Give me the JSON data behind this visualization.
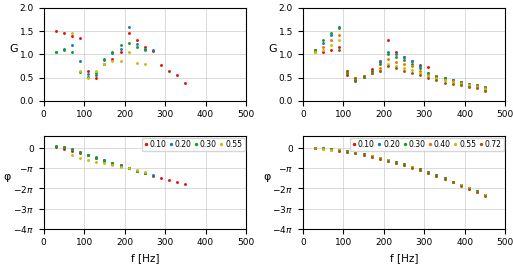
{
  "left_gain": {
    "red": {
      "freq": [
        30,
        50,
        70,
        90,
        110,
        130,
        150,
        170,
        190,
        210,
        230,
        250,
        270,
        290,
        310,
        330,
        350
      ],
      "gain": [
        1.5,
        1.45,
        1.4,
        1.35,
        0.65,
        0.48,
        0.8,
        0.9,
        1.05,
        1.45,
        1.32,
        1.15,
        1.08,
        0.78,
        0.65,
        0.55,
        0.38
      ]
    },
    "blue": {
      "freq": [
        30,
        50,
        70,
        90,
        110,
        130,
        150,
        170,
        190,
        210,
        230,
        250,
        270
      ],
      "gain": [
        1.05,
        1.12,
        1.2,
        0.85,
        0.58,
        0.55,
        0.88,
        1.02,
        1.12,
        1.6,
        1.22,
        1.12,
        1.1
      ]
    },
    "green": {
      "freq": [
        30,
        50,
        70,
        90,
        110,
        130,
        150,
        170,
        190,
        210,
        230,
        250
      ],
      "gain": [
        1.05,
        1.1,
        1.05,
        0.62,
        0.52,
        0.6,
        0.9,
        1.05,
        1.2,
        1.25,
        1.15,
        1.1
      ]
    },
    "olive": {
      "freq": [
        70,
        90,
        110,
        130,
        150,
        170,
        190,
        210,
        230,
        250
      ],
      "gain": [
        1.45,
        0.65,
        0.5,
        0.65,
        0.8,
        0.85,
        0.85,
        1.05,
        0.82,
        0.8
      ]
    }
  },
  "left_phase": {
    "red": {
      "freq": [
        30,
        50,
        70,
        90,
        110,
        130,
        150,
        170,
        190,
        210,
        230,
        250,
        270,
        290,
        310,
        330,
        350
      ],
      "phase_pi": [
        0.04,
        -0.04,
        -0.13,
        -0.22,
        -0.35,
        -0.48,
        -0.6,
        -0.73,
        -0.86,
        -0.99,
        -1.12,
        -1.25,
        -1.38,
        -1.5,
        -1.6,
        -1.7,
        -1.8
      ]
    },
    "blue": {
      "freq": [
        30,
        50,
        70,
        90,
        110,
        130,
        150,
        170,
        190,
        210,
        230,
        250,
        270
      ],
      "phase_pi": [
        0.08,
        0.03,
        -0.06,
        -0.18,
        -0.32,
        -0.46,
        -0.6,
        -0.73,
        -0.86,
        -0.99,
        -1.12,
        -1.25,
        -1.35
      ]
    },
    "green": {
      "freq": [
        30,
        50,
        70,
        90,
        110,
        130,
        150,
        170,
        190,
        210,
        230,
        250
      ],
      "phase_pi": [
        0.08,
        0.03,
        -0.06,
        -0.18,
        -0.35,
        -0.5,
        -0.63,
        -0.76,
        -0.89,
        -1.0,
        -1.12,
        -1.22
      ]
    },
    "olive": {
      "freq": [
        70,
        90,
        110,
        130,
        150,
        170,
        190,
        210,
        230,
        250
      ],
      "phase_pi": [
        -0.35,
        -0.48,
        -0.58,
        -0.68,
        -0.76,
        -0.85,
        -0.92,
        -1.0,
        -1.1,
        -1.18
      ]
    }
  },
  "right_gain": {
    "red": {
      "freq": [
        30,
        50,
        70,
        90,
        110,
        130,
        150,
        170,
        190,
        210,
        230,
        250,
        270,
        290,
        310,
        330,
        350,
        370,
        390,
        410,
        430,
        450
      ],
      "gain": [
        1.1,
        1.05,
        1.1,
        1.15,
        0.55,
        0.42,
        0.52,
        0.68,
        0.85,
        1.3,
        1.05,
        0.95,
        0.85,
        0.78,
        0.72,
        0.52,
        0.48,
        0.44,
        0.4,
        0.35,
        0.3,
        0.24
      ]
    },
    "blue": {
      "freq": [
        30,
        50,
        70,
        90,
        110,
        130,
        150,
        170,
        190,
        210,
        230,
        250,
        270,
        290,
        310,
        330,
        350,
        370,
        390,
        410,
        430,
        450
      ],
      "gain": [
        1.1,
        1.25,
        1.42,
        1.6,
        0.65,
        0.44,
        0.52,
        0.64,
        0.84,
        1.06,
        1.0,
        0.95,
        0.85,
        0.75,
        0.6,
        0.54,
        0.48,
        0.44,
        0.4,
        0.37,
        0.34,
        0.3
      ]
    },
    "green": {
      "freq": [
        30,
        50,
        70,
        90,
        110,
        130,
        150,
        170,
        190,
        210,
        230,
        250,
        270,
        290,
        310,
        330,
        350,
        370,
        390,
        410,
        430,
        450
      ],
      "gain": [
        1.1,
        1.3,
        1.46,
        1.56,
        0.6,
        0.44,
        0.52,
        0.64,
        0.8,
        1.0,
        0.95,
        0.88,
        0.8,
        0.7,
        0.6,
        0.54,
        0.48,
        0.44,
        0.4,
        0.37,
        0.34,
        0.3
      ]
    },
    "orange": {
      "freq": [
        30,
        50,
        70,
        90,
        110,
        130,
        150,
        170,
        190,
        210,
        230,
        250,
        270,
        290,
        310,
        330,
        350,
        370,
        390,
        410,
        430,
        450
      ],
      "gain": [
        1.05,
        1.15,
        1.3,
        1.42,
        0.65,
        0.5,
        0.54,
        0.6,
        0.7,
        0.9,
        0.84,
        0.8,
        0.74,
        0.65,
        0.56,
        0.5,
        0.45,
        0.42,
        0.38,
        0.35,
        0.31,
        0.27
      ]
    },
    "olive": {
      "freq": [
        30,
        50,
        70,
        90,
        110,
        130,
        150,
        170,
        190,
        210,
        230,
        250,
        270,
        290,
        310,
        330,
        350,
        370,
        390,
        410,
        430,
        450
      ],
      "gain": [
        1.05,
        1.1,
        1.2,
        1.3,
        0.65,
        0.5,
        0.54,
        0.6,
        0.65,
        0.8,
        0.74,
        0.7,
        0.66,
        0.6,
        0.54,
        0.48,
        0.44,
        0.41,
        0.37,
        0.34,
        0.3,
        0.25
      ]
    },
    "brown": {
      "freq": [
        90,
        110,
        130,
        150,
        170,
        190,
        210,
        230,
        250,
        270,
        290,
        310,
        330,
        350,
        370,
        390,
        410,
        430,
        450
      ],
      "gain": [
        1.1,
        0.65,
        0.5,
        0.54,
        0.6,
        0.65,
        0.75,
        0.7,
        0.64,
        0.6,
        0.56,
        0.5,
        0.44,
        0.39,
        0.37,
        0.34,
        0.3,
        0.27,
        0.22
      ]
    }
  },
  "right_phase": {
    "red": {
      "freq": [
        30,
        50,
        70,
        90,
        110,
        130,
        150,
        170,
        190,
        210,
        230,
        250,
        270,
        290,
        310,
        330,
        350,
        370,
        390,
        410,
        430,
        450
      ],
      "phase_pi": [
        0.0,
        -0.02,
        -0.05,
        -0.09,
        -0.15,
        -0.22,
        -0.3,
        -0.39,
        -0.49,
        -0.59,
        -0.7,
        -0.81,
        -0.93,
        -1.06,
        -1.2,
        -1.35,
        -1.5,
        -1.66,
        -1.82,
        -1.98,
        -2.15,
        -2.32
      ]
    },
    "blue": {
      "freq": [
        30,
        50,
        70,
        90,
        110,
        130,
        150,
        170,
        190,
        210,
        230,
        250,
        270,
        290,
        310,
        330,
        350,
        370,
        390,
        410,
        430,
        450
      ],
      "phase_pi": [
        0.0,
        -0.02,
        -0.05,
        -0.09,
        -0.15,
        -0.22,
        -0.3,
        -0.39,
        -0.49,
        -0.59,
        -0.7,
        -0.81,
        -0.93,
        -1.06,
        -1.2,
        -1.35,
        -1.5,
        -1.66,
        -1.82,
        -1.98,
        -2.15,
        -2.32
      ]
    },
    "green": {
      "freq": [
        30,
        50,
        70,
        90,
        110,
        130,
        150,
        170,
        190,
        210,
        230,
        250,
        270,
        290,
        310,
        330,
        350,
        370,
        390,
        410,
        430,
        450
      ],
      "phase_pi": [
        0.0,
        -0.02,
        -0.05,
        -0.09,
        -0.15,
        -0.22,
        -0.3,
        -0.39,
        -0.49,
        -0.59,
        -0.7,
        -0.81,
        -0.93,
        -1.06,
        -1.2,
        -1.35,
        -1.5,
        -1.66,
        -1.82,
        -1.98,
        -2.15,
        -2.32
      ]
    },
    "orange": {
      "freq": [
        30,
        50,
        70,
        90,
        110,
        130,
        150,
        170,
        190,
        210,
        230,
        250,
        270,
        290,
        310,
        330,
        350,
        370,
        390,
        410,
        430,
        450
      ],
      "phase_pi": [
        -0.02,
        -0.04,
        -0.08,
        -0.12,
        -0.18,
        -0.25,
        -0.33,
        -0.42,
        -0.52,
        -0.62,
        -0.73,
        -0.84,
        -0.96,
        -1.09,
        -1.23,
        -1.38,
        -1.53,
        -1.69,
        -1.85,
        -2.01,
        -2.18,
        -2.35
      ]
    },
    "olive": {
      "freq": [
        50,
        70,
        90,
        110,
        130,
        150,
        170,
        190,
        210,
        230,
        250,
        270,
        290,
        310,
        330,
        350,
        370,
        390,
        410,
        430,
        450
      ],
      "phase_pi": [
        -0.04,
        -0.07,
        -0.11,
        -0.17,
        -0.24,
        -0.32,
        -0.41,
        -0.51,
        -0.61,
        -0.72,
        -0.83,
        -0.95,
        -1.08,
        -1.22,
        -1.37,
        -1.52,
        -1.68,
        -1.84,
        -2.0,
        -2.17,
        -2.34
      ]
    },
    "brown": {
      "freq": [
        90,
        110,
        130,
        150,
        170,
        190,
        210,
        230,
        250,
        270,
        290,
        310,
        330,
        350,
        370,
        390,
        410,
        430,
        450
      ],
      "phase_pi": [
        -0.12,
        -0.18,
        -0.26,
        -0.34,
        -0.43,
        -0.53,
        -0.63,
        -0.74,
        -0.85,
        -0.97,
        -1.1,
        -1.24,
        -1.39,
        -1.54,
        -1.7,
        -1.86,
        -2.02,
        -2.19,
        -2.36
      ]
    }
  },
  "colors": {
    "red": "#e8130c",
    "blue": "#1c78c8",
    "green": "#1aa018",
    "orange": "#e87808",
    "olive": "#c8c010",
    "brown": "#a05818"
  },
  "left_legend": [
    "0.10",
    "0.20",
    "0.30",
    "0.55"
  ],
  "right_legend": [
    "0.10",
    "0.20",
    "0.30",
    "0.40",
    "0.55",
    "0.72"
  ],
  "left_legend_colors": [
    "red",
    "blue",
    "green",
    "olive"
  ],
  "right_legend_colors": [
    "red",
    "blue",
    "green",
    "orange",
    "olive",
    "brown"
  ],
  "ylabel_gain": "G",
  "ylabel_phase": "φ",
  "xlabel": "f [Hz]",
  "gain_ylim": [
    0,
    2
  ],
  "xlim": [
    0,
    500
  ]
}
